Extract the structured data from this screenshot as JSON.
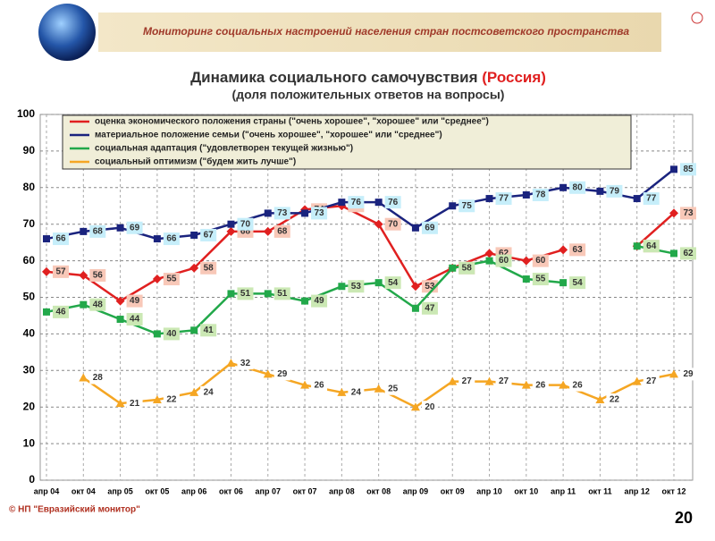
{
  "header": {
    "banner": "Мониторинг социальных настроений населения стран постсоветского пространства"
  },
  "chart_data": {
    "type": "line",
    "title": "Динамика социального самочувствия",
    "title_highlight": "(Россия)",
    "subtitle": "(доля положительных ответов на вопросы)",
    "categories": [
      "апр 04",
      "окт 04",
      "апр 05",
      "окт 05",
      "апр 06",
      "окт 06",
      "апр 07",
      "окт 07",
      "апр 08",
      "окт 08",
      "апр 09",
      "окт 09",
      "апр 10",
      "окт 10",
      "апр 11",
      "окт 11",
      "апр 12",
      "окт 12"
    ],
    "series": [
      {
        "name": "оценка экономического положения страны (\"очень хорошее\", \"хорошее\" или \"среднее\")",
        "color": "#e02020",
        "values": [
          57,
          56,
          49,
          55,
          58,
          68,
          68,
          74,
          75,
          70,
          53,
          58,
          62,
          60,
          63,
          null,
          64,
          73
        ]
      },
      {
        "name": "материальное положение семьи (\"очень хорошее\", \"хорошее\" или \"среднее\")",
        "color": "#1a237e",
        "values": [
          66,
          68,
          69,
          66,
          67,
          70,
          73,
          73,
          76,
          76,
          69,
          75,
          77,
          78,
          80,
          79,
          77,
          85
        ]
      },
      {
        "name": "социальная адаптация (\"удовлетворен текущей жизнью\")",
        "color": "#22a84a",
        "values": [
          46,
          48,
          44,
          40,
          41,
          51,
          51,
          49,
          53,
          54,
          47,
          58,
          60,
          55,
          54,
          null,
          64,
          62
        ]
      },
      {
        "name": "социальный оптимизм (\"будем жить лучше\")",
        "color": "#f5a623",
        "values": [
          null,
          28,
          21,
          22,
          24,
          32,
          29,
          26,
          24,
          25,
          20,
          27,
          27,
          26,
          26,
          22,
          27,
          29
        ]
      }
    ],
    "ylim": [
      0,
      100
    ],
    "yticks": [
      0,
      10,
      20,
      30,
      40,
      50,
      60,
      70,
      80,
      90,
      100
    ],
    "grid": true
  },
  "footer": {
    "copyright": "© НП \"Евразийский монитор\"",
    "page": "20"
  }
}
